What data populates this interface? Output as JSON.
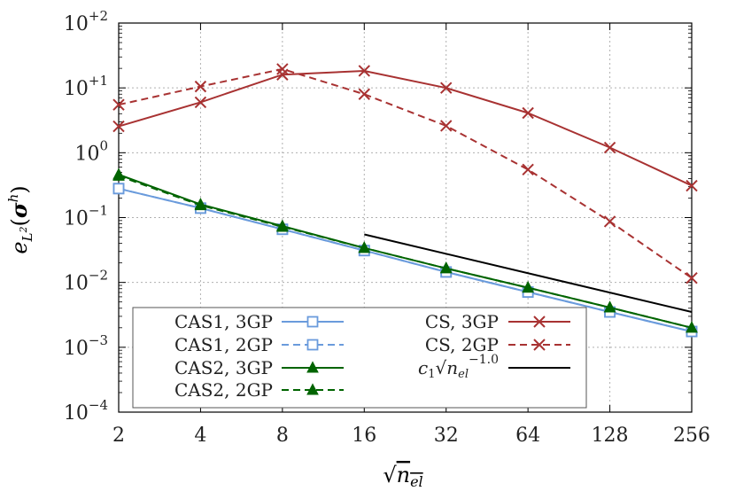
{
  "chart_data": {
    "type": "line",
    "xlabel": "√n_el",
    "ylabel": "e_L²(σ^h)",
    "x_scale": "log2",
    "y_scale": "log10",
    "x_ticks": [
      "2",
      "4",
      "8",
      "16",
      "32",
      "64",
      "128",
      "256"
    ],
    "y_ticks": [
      {
        "base": "10",
        "exp": "−4"
      },
      {
        "base": "10",
        "exp": "−3"
      },
      {
        "base": "10",
        "exp": "−2"
      },
      {
        "base": "10",
        "exp": "−1"
      },
      {
        "base": "10",
        "exp": "0"
      },
      {
        "base": "10",
        "exp": "+1"
      },
      {
        "base": "10",
        "exp": "+2"
      }
    ],
    "xlim": [
      2,
      256
    ],
    "ylim": [
      0.0001,
      100
    ],
    "grid": true,
    "legend_placement": "bottom-left",
    "x": [
      2,
      4,
      8,
      16,
      32,
      64,
      128,
      256
    ],
    "series": [
      {
        "name": "CAS1, 3GP",
        "color": "#6a9bdc",
        "marker": "square-open",
        "dash": "solid",
        "values": [
          0.28,
          0.14,
          0.066,
          0.031,
          0.0145,
          0.0071,
          0.0035,
          0.00175
        ]
      },
      {
        "name": "CAS1, 2GP",
        "color": "#6a9bdc",
        "marker": "square-open",
        "dash": "dashed",
        "values": [
          0.28,
          0.14,
          0.066,
          0.031,
          0.0145,
          0.0071,
          0.0035,
          0.00175
        ]
      },
      {
        "name": "CAS2, 3GP",
        "color": "#006400",
        "marker": "triangle",
        "dash": "solid",
        "values": [
          0.46,
          0.16,
          0.074,
          0.034,
          0.0165,
          0.0083,
          0.0041,
          0.002
        ]
      },
      {
        "name": "CAS2, 2GP",
        "color": "#006400",
        "marker": "triangle",
        "dash": "dashed",
        "values": [
          0.44,
          0.155,
          0.072,
          0.034,
          0.0165,
          0.0083,
          0.0041,
          0.002
        ]
      },
      {
        "name": "CS, 3GP",
        "color": "#a83232",
        "marker": "x",
        "dash": "solid",
        "values": [
          2.55,
          6.0,
          16.0,
          18.3,
          10.0,
          4.1,
          1.2,
          0.31
        ]
      },
      {
        "name": "CS, 2GP",
        "color": "#a83232",
        "marker": "x",
        "dash": "dashed",
        "values": [
          5.5,
          10.5,
          19.5,
          8.0,
          2.6,
          0.55,
          0.087,
          0.0117
        ]
      },
      {
        "name": "c₁√n_el^−1.0",
        "color": "#000000",
        "marker": "none",
        "dash": "solid",
        "x": [
          16,
          256
        ],
        "values": [
          0.055,
          0.0035
        ]
      }
    ]
  }
}
